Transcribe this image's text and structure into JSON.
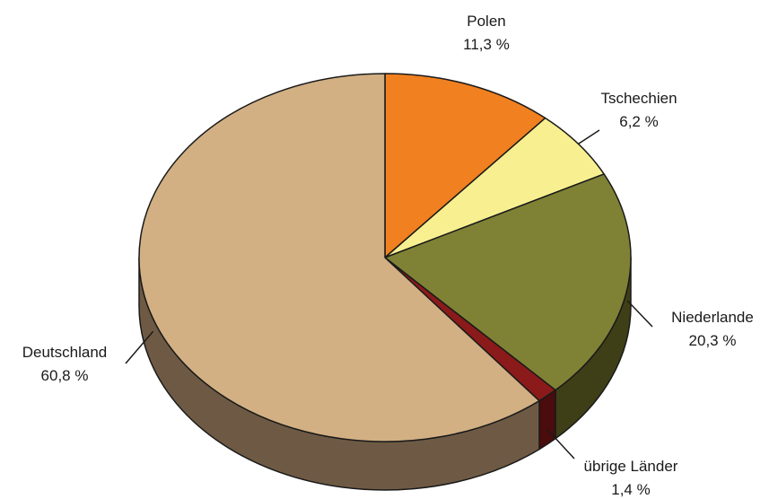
{
  "chart_data": {
    "type": "pie",
    "title": "",
    "slices": [
      {
        "label": "Polen",
        "value": 11.3,
        "value_label": "11,3 %",
        "color": "#F08020",
        "side_color": "#8A4810"
      },
      {
        "label": "Tschechien",
        "value": 6.2,
        "value_label": "6,2 %",
        "color": "#F8F090",
        "side_color": "#8E8A50"
      },
      {
        "label": "Niederlande",
        "value": 20.3,
        "value_label": "20,3 %",
        "color": "#7F8235",
        "side_color": "#3E3F17"
      },
      {
        "label": "übrige Länder",
        "value": 1.4,
        "value_label": "1,4 %",
        "color": "#8B1A1A",
        "side_color": "#4A0C0C"
      },
      {
        "label": "Deutschland",
        "value": 60.8,
        "value_label": "60,8 %",
        "color": "#D2B083",
        "side_color": "#6E5A44"
      }
    ],
    "start": "top, clockwise",
    "style": "3d"
  }
}
